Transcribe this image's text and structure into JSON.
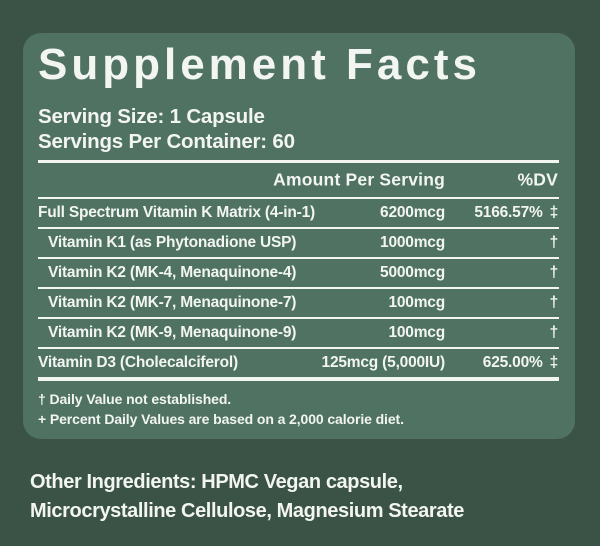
{
  "colors": {
    "background": "#3B5347",
    "panel": "#4F7263",
    "text": "#F2F5F1"
  },
  "panel": {
    "title": "Supplement Facts",
    "serving_size": "Serving Size: 1 Capsule",
    "servings_per_container": "Servings Per Container: 60",
    "table": {
      "columns": {
        "amount": "Amount Per Serving",
        "dv": "%DV"
      },
      "rows": [
        {
          "name": "Full Spectrum Vitamin K Matrix (4-in-1)",
          "amount": "6200mcg",
          "dv": "5166.57%",
          "symbol": "‡"
        },
        {
          "name": "Vitamin K1 (as Phytonadione USP)",
          "amount": "1000mcg",
          "dv": "",
          "symbol": "†"
        },
        {
          "name": "Vitamin K2 (MK-4, Menaquinone-4)",
          "amount": "5000mcg",
          "dv": "",
          "symbol": "†"
        },
        {
          "name": "Vitamin K2 (MK-7, Menaquinone-7)",
          "amount": "100mcg",
          "dv": "",
          "symbol": "†"
        },
        {
          "name": "Vitamin K2 (MK-9, Menaquinone-9)",
          "amount": "100mcg",
          "dv": "",
          "symbol": "†"
        },
        {
          "name": "Vitamin D3 (Cholecalciferol)",
          "amount": "125mcg (5,000IU)",
          "dv": "625.00%",
          "symbol": "‡"
        }
      ]
    },
    "footnotes": [
      "† Daily Value not established.",
      "+ Percent Daily Values are based on a 2,000 calorie diet."
    ]
  },
  "other_ingredients": {
    "line1": "Other Ingredients: HPMC Vegan capsule,",
    "line2": "Microcrystalline Cellulose, Magnesium Stearate"
  }
}
